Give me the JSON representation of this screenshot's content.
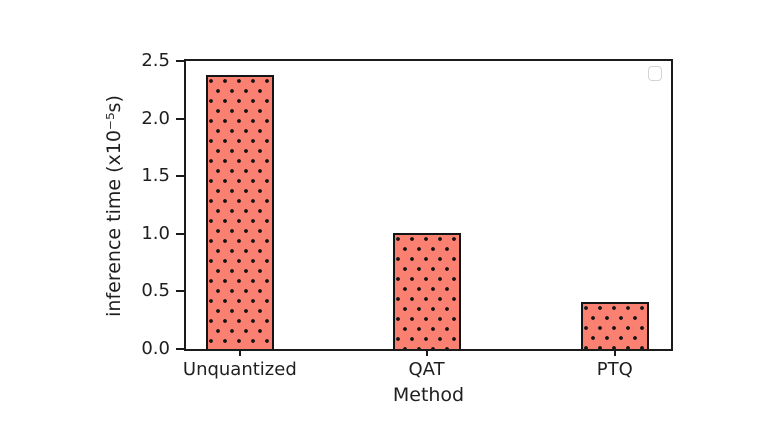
{
  "figure": {
    "background": "#ffffff"
  },
  "chart_data": {
    "type": "bar",
    "title": "",
    "xlabel": "Method",
    "ylabel": "inference time (x10⁻⁵s)",
    "categories": [
      "Unquantized",
      "QAT",
      "PTQ"
    ],
    "values": [
      2.38,
      1.01,
      0.41
    ],
    "ylim": [
      0,
      2.5
    ],
    "ytick_labels": [
      "0.0",
      "0.5",
      "1.0",
      "1.5",
      "2.0",
      "2.5"
    ],
    "grid": false,
    "legend": {
      "position": "upper right",
      "entries": [],
      "empty_frame": true
    },
    "bar_style": {
      "fill_color": "#fa8072",
      "edge_color": "#141414",
      "hatch": "dots",
      "hatch_color": "#151515"
    },
    "spine_color": "#1b1b1b",
    "text_color": "#1f1f1f"
  }
}
